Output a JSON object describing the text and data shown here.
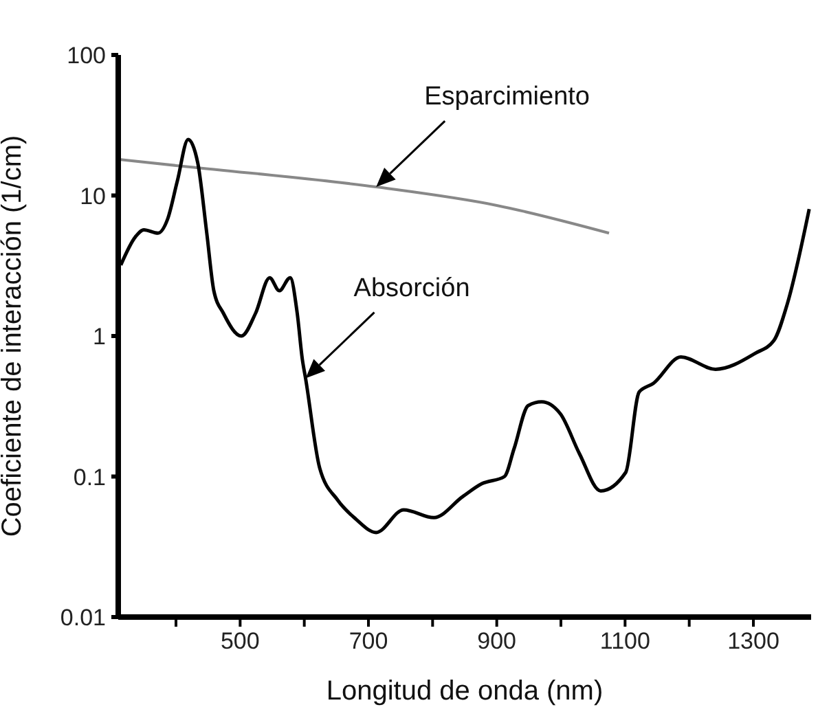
{
  "chart_data": {
    "type": "line",
    "xlabel": "Longitud de onda (nm)",
    "ylabel": "Coeficiente de interacción  (1/cm)",
    "log": "y",
    "xlim": [
      310,
      1390
    ],
    "xticks": [
      {
        "value": 400,
        "label": null
      },
      500,
      {
        "value": 600,
        "label": null
      },
      700,
      {
        "value": 800,
        "label": null
      },
      900,
      {
        "value": 1000,
        "label": null
      },
      1100,
      {
        "value": 1200,
        "label": null
      },
      1300
    ],
    "ylim": [
      0.01,
      100
    ],
    "yticks": [
      0.01,
      0.1,
      1,
      10,
      100
    ],
    "series": [
      {
        "name": "Esparcimiento",
        "color": "#888888",
        "x": [
          314,
          419,
          712,
          900,
          1075
        ],
        "values": [
          18,
          16,
          11.5,
          8.5,
          5.4
        ]
      },
      {
        "name": "Absorción",
        "color": "#000000",
        "x": [
          314,
          337,
          350,
          372,
          387,
          402,
          419,
          434,
          448,
          459,
          474,
          502,
          524,
          546,
          561,
          578,
          589,
          597,
          602,
          624,
          652,
          680,
          712,
          755,
          802,
          847,
          877,
          912,
          927,
          949,
          970,
          999,
          1029,
          1062,
          1101,
          1122,
          1144,
          1187,
          1241,
          1302,
          1332,
          1353,
          1387
        ],
        "values": [
          3.2,
          5.1,
          5.7,
          5.4,
          6.8,
          12.6,
          25,
          17,
          5.4,
          2.1,
          1.45,
          1.0,
          1.45,
          2.6,
          2.1,
          2.6,
          1.45,
          0.68,
          0.5,
          0.115,
          0.068,
          0.05,
          0.04,
          0.058,
          0.051,
          0.072,
          0.089,
          0.1,
          0.158,
          0.32,
          0.34,
          0.28,
          0.145,
          0.079,
          0.107,
          0.4,
          0.46,
          0.71,
          0.58,
          0.75,
          0.93,
          1.7,
          8
        ]
      }
    ]
  }
}
